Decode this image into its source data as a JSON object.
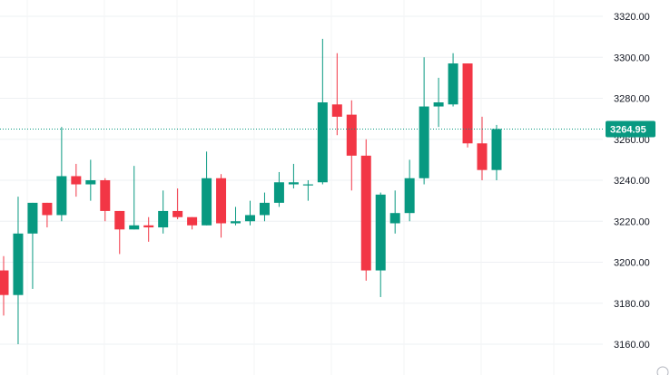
{
  "chart_data": {
    "type": "candlestick",
    "y_ticks": [
      3160,
      3180,
      3200,
      3220,
      3240,
      3260,
      3280,
      3300,
      3320
    ],
    "y_tick_labels": [
      "3160.00",
      "3180.00",
      "3200.00",
      "3220.00",
      "3240.00",
      "3260.00",
      "3280.00",
      "3300.00",
      "3320.00"
    ],
    "ylim": [
      3148,
      3335
    ],
    "grid": true,
    "last_price": 3264.95,
    "last_price_label": "3264.95",
    "colors": {
      "up": "#26a69a",
      "down": "#ef5350",
      "up_body": "#089981",
      "down_body": "#f23645",
      "grid": "#eef0f3",
      "price_line": "#089981"
    },
    "candles": [
      {
        "o": 3196,
        "h": 3203,
        "l": 3174,
        "c": 3184
      },
      {
        "o": 3184,
        "h": 3232,
        "l": 3160,
        "c": 3214
      },
      {
        "o": 3214,
        "h": 3229,
        "l": 3187,
        "c": 3229
      },
      {
        "o": 3229,
        "h": 3229,
        "l": 3217,
        "c": 3223
      },
      {
        "o": 3223,
        "h": 3266,
        "l": 3220,
        "c": 3242
      },
      {
        "o": 3242,
        "h": 3248,
        "l": 3232,
        "c": 3238
      },
      {
        "o": 3238,
        "h": 3250,
        "l": 3230,
        "c": 3240
      },
      {
        "o": 3240,
        "h": 3241,
        "l": 3220,
        "c": 3225
      },
      {
        "o": 3225,
        "h": 3225,
        "l": 3204,
        "c": 3216
      },
      {
        "o": 3216,
        "h": 3247,
        "l": 3216,
        "c": 3218
      },
      {
        "o": 3218,
        "h": 3222,
        "l": 3210,
        "c": 3217
      },
      {
        "o": 3217,
        "h": 3235,
        "l": 3214,
        "c": 3225
      },
      {
        "o": 3225,
        "h": 3236,
        "l": 3221,
        "c": 3222
      },
      {
        "o": 3222,
        "h": 3222,
        "l": 3216,
        "c": 3218
      },
      {
        "o": 3218,
        "h": 3254,
        "l": 3218,
        "c": 3241
      },
      {
        "o": 3241,
        "h": 3243,
        "l": 3212,
        "c": 3219
      },
      {
        "o": 3219,
        "h": 3227,
        "l": 3218,
        "c": 3220
      },
      {
        "o": 3220,
        "h": 3230,
        "l": 3218,
        "c": 3223
      },
      {
        "o": 3223,
        "h": 3234,
        "l": 3220,
        "c": 3229
      },
      {
        "o": 3229,
        "h": 3244,
        "l": 3227,
        "c": 3239
      },
      {
        "o": 3238,
        "h": 3248,
        "l": 3236,
        "c": 3239
      },
      {
        "o": 3238,
        "h": 3240,
        "l": 3230,
        "c": 3238
      },
      {
        "o": 3239,
        "h": 3309,
        "l": 3238,
        "c": 3278
      },
      {
        "o": 3277,
        "h": 3302,
        "l": 3262,
        "c": 3271
      },
      {
        "o": 3272,
        "h": 3279,
        "l": 3235,
        "c": 3252
      },
      {
        "o": 3252,
        "h": 3260,
        "l": 3191,
        "c": 3196
      },
      {
        "o": 3196,
        "h": 3234,
        "l": 3183,
        "c": 3233
      },
      {
        "o": 3219,
        "h": 3235,
        "l": 3214,
        "c": 3224
      },
      {
        "o": 3224,
        "h": 3250,
        "l": 3220,
        "c": 3241
      },
      {
        "o": 3241,
        "h": 3300,
        "l": 3238,
        "c": 3276
      },
      {
        "o": 3276,
        "h": 3290,
        "l": 3266,
        "c": 3278
      },
      {
        "o": 3277,
        "h": 3302,
        "l": 3276,
        "c": 3297
      },
      {
        "o": 3297,
        "h": 3297,
        "l": 3256,
        "c": 3258
      },
      {
        "o": 3258,
        "h": 3271,
        "l": 3240,
        "c": 3245
      },
      {
        "o": 3245,
        "h": 3267,
        "l": 3240,
        "c": 3265
      }
    ]
  }
}
